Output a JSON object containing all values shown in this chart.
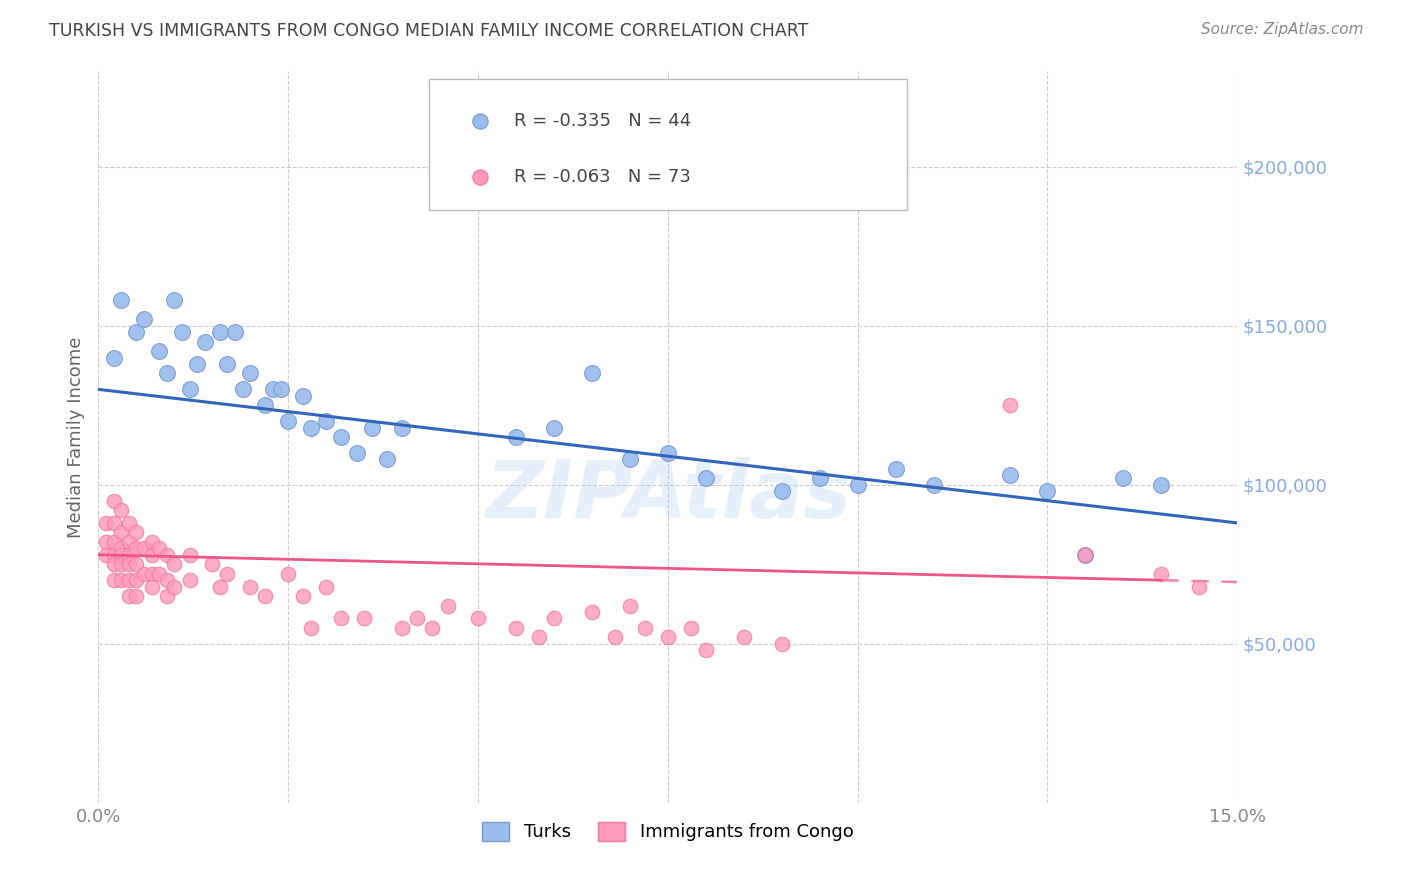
{
  "title": "TURKISH VS IMMIGRANTS FROM CONGO MEDIAN FAMILY INCOME CORRELATION CHART",
  "source": "Source: ZipAtlas.com",
  "ylabel": "Median Family Income",
  "y_tick_labels": [
    "$50,000",
    "$100,000",
    "$150,000",
    "$200,000"
  ],
  "y_tick_values": [
    50000,
    100000,
    150000,
    200000
  ],
  "y_min": 0,
  "y_max": 230000,
  "x_min": 0.0,
  "x_max": 0.15,
  "watermark": "ZIPAtlas",
  "turks_color": "#99bbee",
  "congo_color": "#ff99bb",
  "turks_edge_color": "#7799cc",
  "congo_edge_color": "#ee7799",
  "trend_turks_color": "#3366bb",
  "trend_congo_solid_color": "#ee5588",
  "trend_congo_dash_color": "#ee88aa",
  "grid_color": "#cccccc",
  "tick_color": "#888888",
  "right_tick_color": "#88aadd",
  "title_color": "#444444",
  "source_color": "#888888",
  "ylabel_color": "#666666",
  "legend_text_color": "#444444",
  "background_color": "#ffffff",
  "turks_x": [
    0.002,
    0.003,
    0.005,
    0.006,
    0.008,
    0.009,
    0.01,
    0.011,
    0.012,
    0.013,
    0.014,
    0.016,
    0.017,
    0.018,
    0.019,
    0.02,
    0.022,
    0.023,
    0.024,
    0.025,
    0.027,
    0.028,
    0.03,
    0.032,
    0.034,
    0.036,
    0.038,
    0.04,
    0.055,
    0.06,
    0.065,
    0.07,
    0.075,
    0.08,
    0.09,
    0.095,
    0.1,
    0.105,
    0.11,
    0.12,
    0.125,
    0.13,
    0.135,
    0.14
  ],
  "turks_y": [
    140000,
    158000,
    148000,
    152000,
    142000,
    135000,
    158000,
    148000,
    130000,
    138000,
    145000,
    148000,
    138000,
    148000,
    130000,
    135000,
    125000,
    130000,
    130000,
    120000,
    128000,
    118000,
    120000,
    115000,
    110000,
    118000,
    108000,
    118000,
    115000,
    118000,
    135000,
    108000,
    110000,
    102000,
    98000,
    102000,
    100000,
    105000,
    100000,
    103000,
    98000,
    78000,
    102000,
    100000
  ],
  "congo_x": [
    0.001,
    0.001,
    0.001,
    0.002,
    0.002,
    0.002,
    0.002,
    0.002,
    0.002,
    0.003,
    0.003,
    0.003,
    0.003,
    0.003,
    0.003,
    0.004,
    0.004,
    0.004,
    0.004,
    0.004,
    0.004,
    0.005,
    0.005,
    0.005,
    0.005,
    0.005,
    0.006,
    0.006,
    0.007,
    0.007,
    0.007,
    0.007,
    0.008,
    0.008,
    0.009,
    0.009,
    0.009,
    0.01,
    0.01,
    0.012,
    0.012,
    0.015,
    0.016,
    0.017,
    0.02,
    0.022,
    0.025,
    0.027,
    0.028,
    0.03,
    0.032,
    0.035,
    0.04,
    0.042,
    0.044,
    0.046,
    0.05,
    0.055,
    0.058,
    0.06,
    0.065,
    0.068,
    0.07,
    0.072,
    0.075,
    0.078,
    0.08,
    0.085,
    0.09,
    0.12,
    0.13,
    0.14,
    0.145
  ],
  "congo_y": [
    88000,
    82000,
    78000,
    95000,
    88000,
    82000,
    78000,
    75000,
    70000,
    92000,
    85000,
    80000,
    78000,
    75000,
    70000,
    88000,
    82000,
    78000,
    75000,
    70000,
    65000,
    85000,
    80000,
    75000,
    70000,
    65000,
    80000,
    72000,
    82000,
    78000,
    72000,
    68000,
    80000,
    72000,
    78000,
    70000,
    65000,
    75000,
    68000,
    78000,
    70000,
    75000,
    68000,
    72000,
    68000,
    65000,
    72000,
    65000,
    55000,
    68000,
    58000,
    58000,
    55000,
    58000,
    55000,
    62000,
    58000,
    55000,
    52000,
    58000,
    60000,
    52000,
    62000,
    55000,
    52000,
    55000,
    48000,
    52000,
    50000,
    125000,
    78000,
    72000,
    68000
  ]
}
